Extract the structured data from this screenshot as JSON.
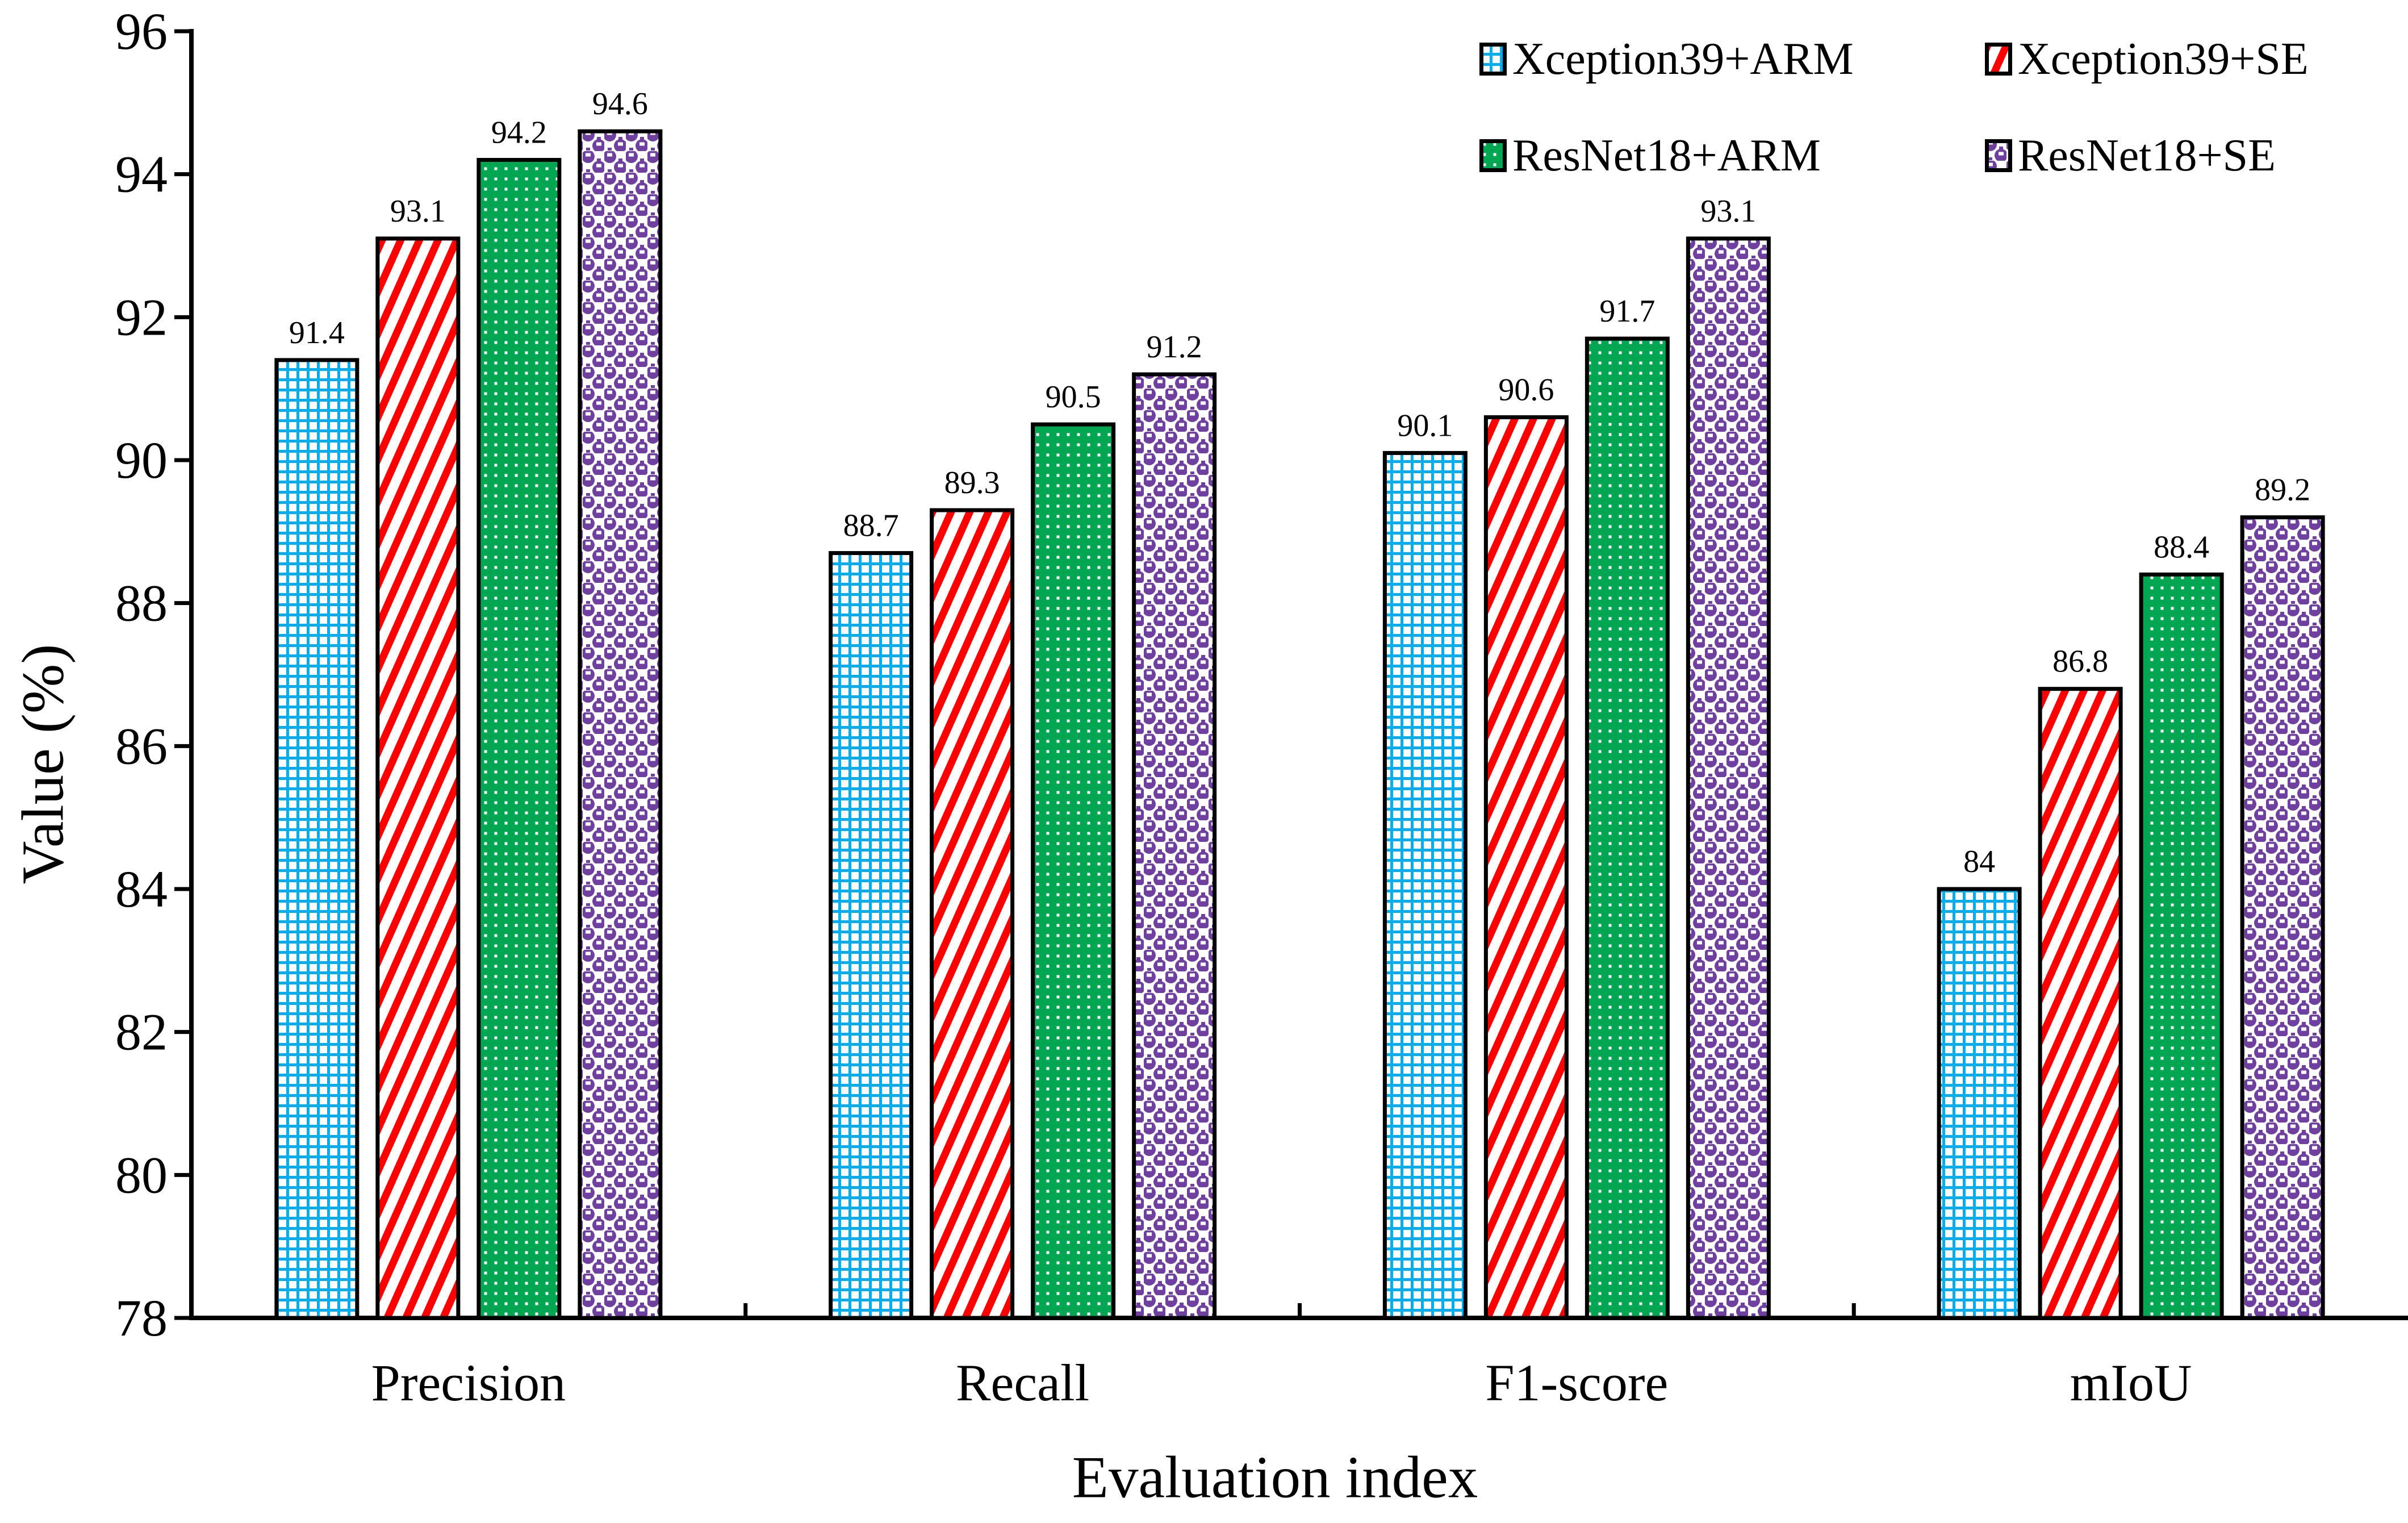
{
  "chart_data": {
    "type": "bar",
    "title": "",
    "categories": [
      "Precision",
      "Recall",
      "F1-score",
      "mIoU"
    ],
    "series": [
      {
        "name": "Xception39+ARM",
        "pattern": "grid",
        "color": "#00AEEF",
        "values": [
          91.4,
          88.7,
          90.1,
          84
        ]
      },
      {
        "name": "Xception39+SE",
        "pattern": "diagonal-stripes",
        "color": "#FF0000",
        "values": [
          93.1,
          89.3,
          90.6,
          86.8
        ]
      },
      {
        "name": "ResNet18+ARM",
        "pattern": "dots",
        "color": "#00A651",
        "values": [
          94.2,
          90.5,
          91.7,
          88.4
        ]
      },
      {
        "name": "ResNet18+SE",
        "pattern": "spheres",
        "color": "#7040A0",
        "values": [
          94.6,
          91.2,
          93.1,
          89.2
        ]
      }
    ],
    "xlabel": "Evaluation index",
    "ylabel": "Value (%)",
    "ylim": [
      78,
      96
    ],
    "ytick_step": 2,
    "ytick_labels": [
      "78",
      "80",
      "82",
      "84",
      "86",
      "88",
      "90",
      "92",
      "94",
      "96"
    ],
    "grid": false,
    "legend_position": "top-right",
    "bar_outline": "#000000",
    "value_labels": true
  }
}
